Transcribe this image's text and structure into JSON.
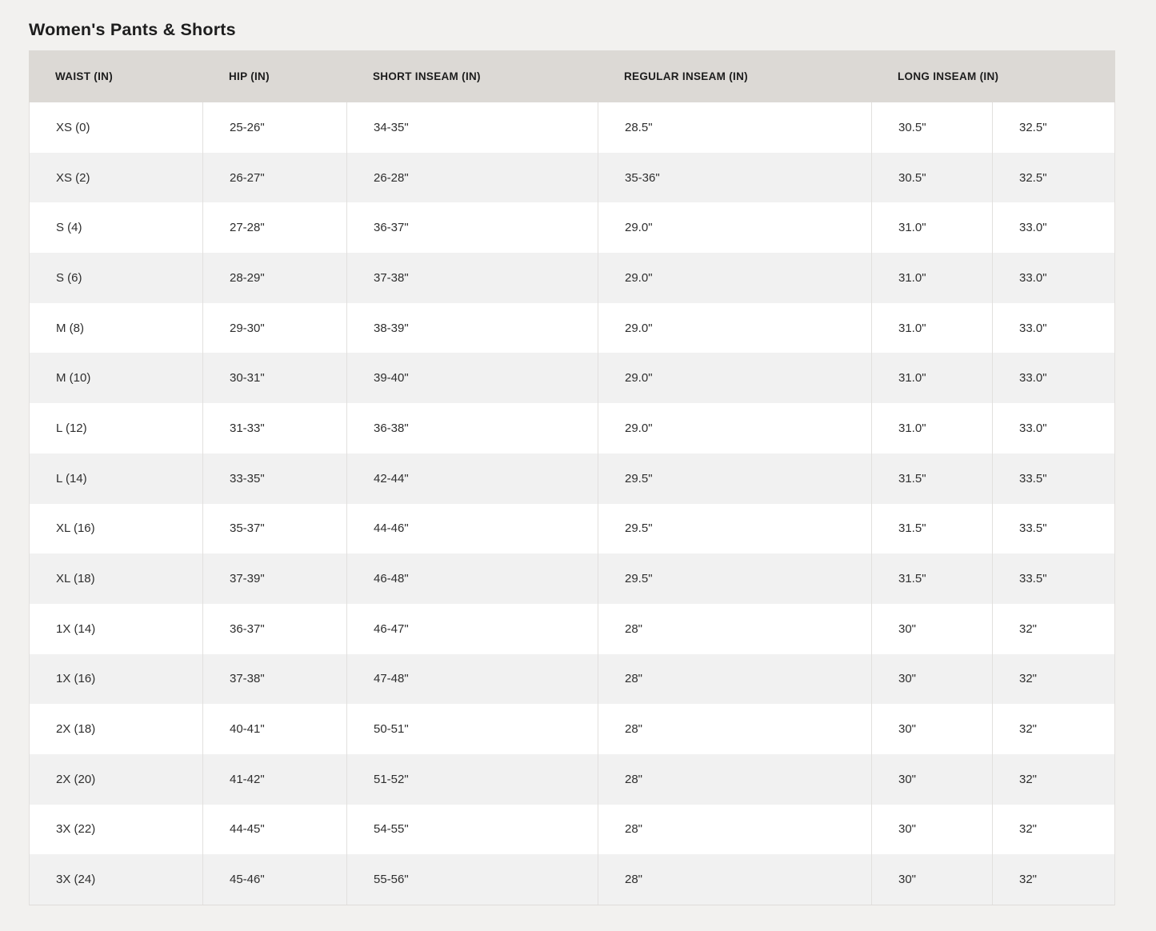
{
  "page_title": "Women's Pants & Shorts",
  "colors": {
    "page_bg": "#f2f1ef",
    "header_bg": "#dcd9d5",
    "row_bg": "#ffffff",
    "row_alt_bg": "#f1f1f1",
    "border": "#e2e0de",
    "text": "#2e2e2e",
    "heading_text": "#1d1d1d"
  },
  "table": {
    "headers": [
      {
        "label": "WAIST (IN)",
        "span": 1
      },
      {
        "label": "HIP (IN)",
        "span": 1
      },
      {
        "label": "SHORT INSEAM (IN)",
        "span": 1
      },
      {
        "label": "REGULAR INSEAM (IN)",
        "span": 1
      },
      {
        "label": "LONG INSEAM (IN)",
        "span": 2
      }
    ],
    "rows": [
      [
        "XS (0)",
        "25-26\"",
        "34-35\"",
        "28.5\"",
        "30.5\"",
        "32.5\""
      ],
      [
        "XS (2)",
        "26-27\"",
        "26-28\"",
        "35-36\"",
        "30.5\"",
        "32.5\""
      ],
      [
        "S (4)",
        "27-28\"",
        "36-37\"",
        "29.0\"",
        "31.0\"",
        "33.0\""
      ],
      [
        "S (6)",
        "28-29\"",
        "37-38\"",
        "29.0\"",
        "31.0\"",
        "33.0\""
      ],
      [
        "M (8)",
        "29-30\"",
        "38-39\"",
        "29.0\"",
        "31.0\"",
        "33.0\""
      ],
      [
        "M (10)",
        "30-31\"",
        "39-40\"",
        "29.0\"",
        "31.0\"",
        "33.0\""
      ],
      [
        "L (12)",
        "31-33\"",
        "36-38\"",
        "29.0\"",
        "31.0\"",
        "33.0\""
      ],
      [
        "L (14)",
        "33-35\"",
        "42-44\"",
        "29.5\"",
        "31.5\"",
        "33.5\""
      ],
      [
        "XL (16)",
        "35-37\"",
        "44-46\"",
        "29.5\"",
        "31.5\"",
        "33.5\""
      ],
      [
        "XL (18)",
        "37-39\"",
        "46-48\"",
        "29.5\"",
        "31.5\"",
        "33.5\""
      ],
      [
        "1X (14)",
        "36-37\"",
        "46-47\"",
        "28\"",
        "30\"",
        "32\""
      ],
      [
        "1X (16)",
        "37-38\"",
        "47-48\"",
        "28\"",
        "30\"",
        "32\""
      ],
      [
        "2X (18)",
        "40-41\"",
        "50-51\"",
        "28\"",
        "30\"",
        "32\""
      ],
      [
        "2X (20)",
        "41-42\"",
        "51-52\"",
        "28\"",
        "30\"",
        "32\""
      ],
      [
        "3X (22)",
        "44-45\"",
        "54-55\"",
        "28\"",
        "30\"",
        "32\""
      ],
      [
        "3X (24)",
        "45-46\"",
        "55-56\"",
        "28\"",
        "30\"",
        "32\""
      ]
    ]
  }
}
